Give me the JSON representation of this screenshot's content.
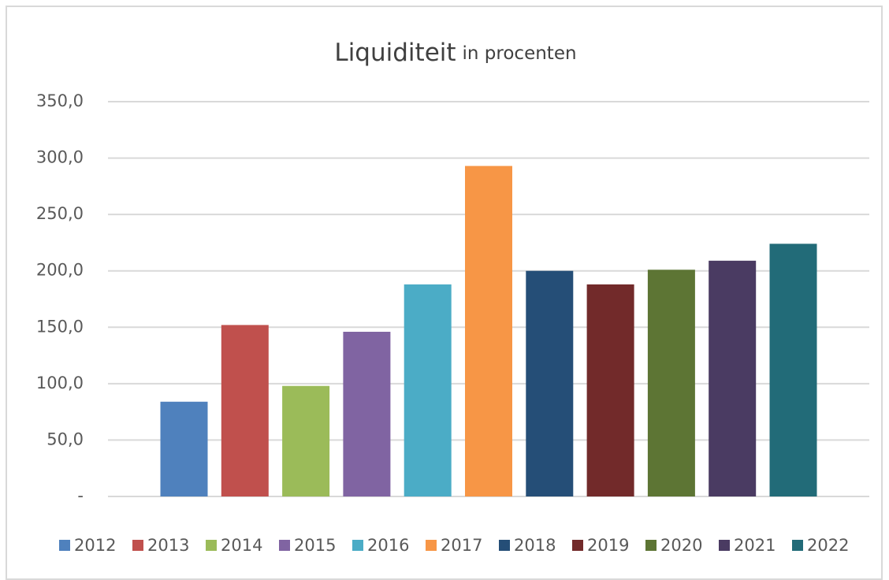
{
  "chart_data": {
    "type": "bar",
    "title": "Liquiditeit",
    "subtitle": "in procenten",
    "series": [
      {
        "name": "2012",
        "color": "#4f81bd",
        "values": [
          84
        ]
      },
      {
        "name": "2013",
        "color": "#c0504d",
        "values": [
          152
        ]
      },
      {
        "name": "2014",
        "color": "#9bbb59",
        "values": [
          98
        ]
      },
      {
        "name": "2015",
        "color": "#8064a2",
        "values": [
          146
        ]
      },
      {
        "name": "2016",
        "color": "#4bacc6",
        "values": [
          188
        ]
      },
      {
        "name": "2017",
        "color": "#f79646",
        "values": [
          293
        ]
      },
      {
        "name": "2018",
        "color": "#254e77",
        "values": [
          200
        ]
      },
      {
        "name": "2019",
        "color": "#722a2a",
        "values": [
          188
        ]
      },
      {
        "name": "2020",
        "color": "#5d7534",
        "values": [
          201
        ]
      },
      {
        "name": "2021",
        "color": "#4a3b62",
        "values": [
          209
        ]
      },
      {
        "name": "2022",
        "color": "#226b78",
        "values": [
          224
        ]
      }
    ],
    "ylim": [
      0,
      350
    ],
    "yticks": [
      {
        "value": 0,
        "label": "-"
      },
      {
        "value": 50,
        "label": "50,0"
      },
      {
        "value": 100,
        "label": "100,0"
      },
      {
        "value": 150,
        "label": "150,0"
      },
      {
        "value": 200,
        "label": "200,0"
      },
      {
        "value": 250,
        "label": "250,0"
      },
      {
        "value": 300,
        "label": "300,0"
      },
      {
        "value": 350,
        "label": "350,0"
      }
    ],
    "grid": true,
    "legend": "bottom"
  }
}
